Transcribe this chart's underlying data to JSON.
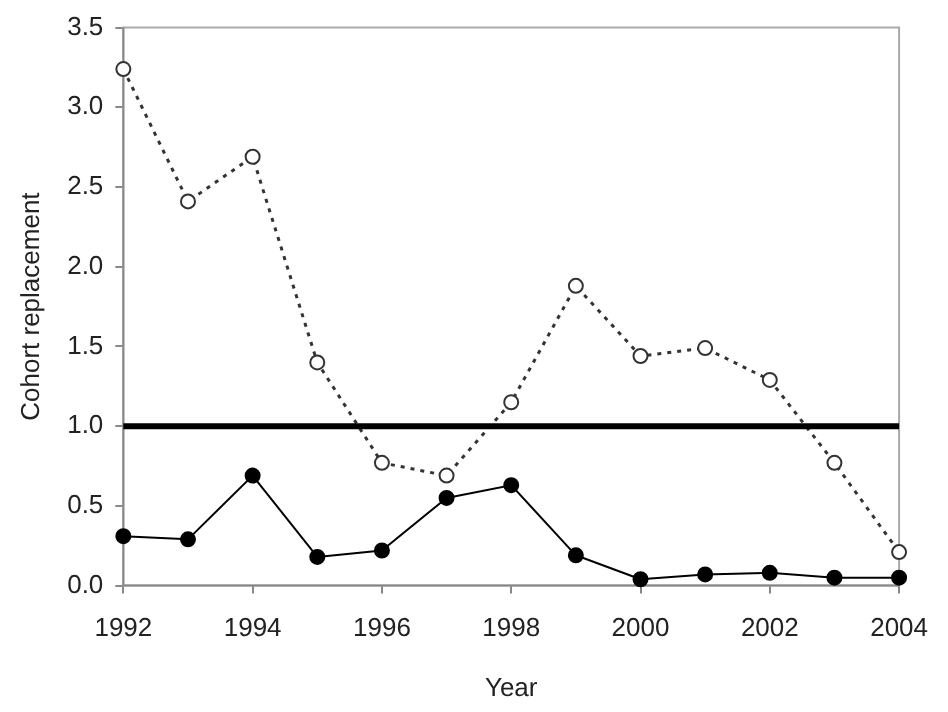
{
  "chart_data": {
    "type": "line",
    "xlabel": "Year",
    "ylabel": "Cohort replacement",
    "x": [
      1992,
      1993,
      1994,
      1995,
      1996,
      1997,
      1998,
      1999,
      2000,
      2001,
      2002,
      2003,
      2004
    ],
    "series": [
      {
        "color": "#333333",
        "line_style": "dotted",
        "values": [
          3.24,
          2.41,
          2.69,
          1.4,
          0.77,
          0.69,
          1.15,
          1.88,
          1.44,
          1.49,
          1.29,
          0.77,
          0.21
        ]
      },
      {
        "color": "#000000",
        "line_style": "solid",
        "values": [
          0.31,
          0.29,
          0.69,
          0.18,
          0.22,
          0.55,
          0.63,
          0.19,
          0.04,
          0.07,
          0.08,
          0.05,
          0.05
        ]
      }
    ],
    "xlim": [
      1992,
      2004
    ],
    "xticks": [
      1992,
      1994,
      1996,
      1998,
      2000,
      2002,
      2004
    ],
    "ylim": [
      0,
      3.5
    ],
    "yticks": [
      {
        "value": 0,
        "label": "0.0"
      },
      {
        "value": 0.5,
        "label": "0.5"
      },
      {
        "value": 1,
        "label": "1.0"
      },
      {
        "value": 1.5,
        "label": "1.5"
      },
      {
        "value": 2,
        "label": "2.0"
      },
      {
        "value": 2.5,
        "label": "2.5"
      },
      {
        "value": 3,
        "label": "3.0"
      },
      {
        "value": 3.5,
        "label": "3.5"
      }
    ],
    "ref_lines": [
      {
        "axis": "y",
        "value": 1,
        "color": "#000000"
      }
    ],
    "grid": false,
    "legend": false,
    "marker": "circle"
  }
}
